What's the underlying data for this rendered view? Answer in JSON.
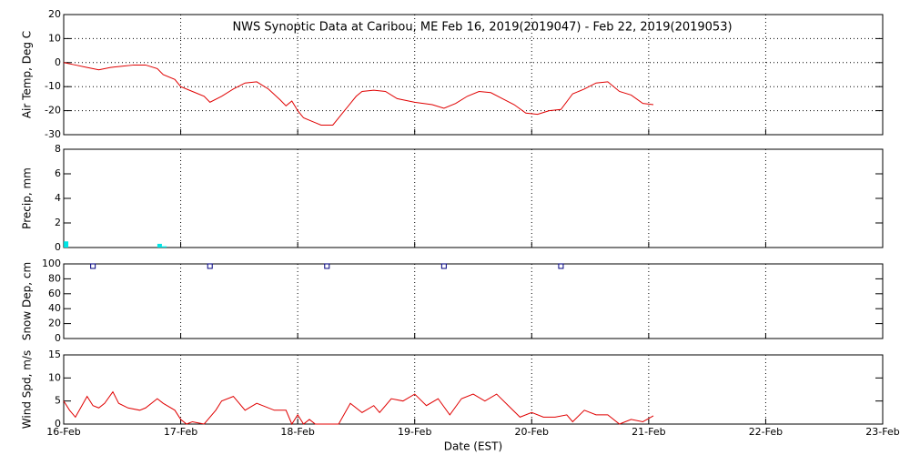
{
  "chart_data": [
    {
      "type": "line",
      "title": "NWS Synoptic Data at Caribou, ME   Feb 16, 2019(2019047) - Feb 22, 2019(2019053)",
      "ylabel": "Air Temp, Deg C",
      "color": "#e00000",
      "grid": "both",
      "x": [
        0,
        0.1,
        0.2,
        0.3,
        0.4,
        0.5,
        0.6,
        0.7,
        0.8,
        0.85,
        0.95,
        1.0,
        1.1,
        1.2,
        1.25,
        1.35,
        1.45,
        1.55,
        1.65,
        1.75,
        1.85,
        1.9,
        1.95,
        2.0,
        2.05,
        2.15,
        2.2,
        2.3,
        2.4,
        2.5,
        2.55,
        2.65,
        2.75,
        2.85,
        3.0,
        3.15,
        3.25,
        3.35,
        3.45,
        3.55,
        3.65,
        3.75,
        3.85,
        3.95,
        4.05,
        4.15,
        4.25,
        4.35,
        4.45,
        4.55,
        4.65,
        4.75,
        4.85,
        4.95,
        5.04
      ],
      "values": [
        0,
        -1,
        -2,
        -3,
        -2,
        -1.5,
        -1,
        -1,
        -2.5,
        -5,
        -7,
        -10,
        -12,
        -14,
        -16.5,
        -14,
        -11,
        -8.5,
        -8,
        -11,
        -15.5,
        -18,
        -16,
        -20,
        -23,
        -25,
        -26,
        -26,
        -20,
        -14,
        -12,
        -11.5,
        -12,
        -15,
        -16.5,
        -17.5,
        -19,
        -17,
        -14,
        -12,
        -12.5,
        -15,
        -17.5,
        -21,
        -21.5,
        -20,
        -19.5,
        -13,
        -11,
        -8.5,
        -8,
        -12,
        -13.5,
        -17,
        -17.5
      ],
      "xlim": [
        0,
        7
      ],
      "ylim": [
        -30,
        20
      ],
      "yticks": [
        -30,
        -20,
        -10,
        0,
        10,
        20
      ]
    },
    {
      "type": "bar",
      "ylabel": "Precip, mm",
      "color": "#00e5e5",
      "grid": "x",
      "x": [
        0.02,
        0.82,
        0.86
      ],
      "values": [
        0.5,
        0.3,
        0.1
      ],
      "xlim": [
        0,
        7
      ],
      "ylim": [
        0,
        8
      ],
      "yticks": [
        0,
        2,
        4,
        6,
        8
      ]
    },
    {
      "type": "scatter",
      "ylabel": "Snow Dep, cm",
      "color": "#000080",
      "grid": "x",
      "x": [
        0.25,
        1.25,
        2.25,
        3.25,
        4.25
      ],
      "values": [
        97,
        97,
        97,
        97,
        97
      ],
      "xlim": [
        0,
        7
      ],
      "ylim": [
        0,
        100
      ],
      "yticks": [
        0,
        20,
        40,
        60,
        80,
        100
      ]
    },
    {
      "type": "line",
      "ylabel": "Wind Spd, m/s",
      "xlabel": "Date (EST)",
      "color": "#e00000",
      "grid": "x",
      "x": [
        0,
        0.05,
        0.1,
        0.2,
        0.25,
        0.3,
        0.35,
        0.42,
        0.47,
        0.55,
        0.65,
        0.7,
        0.8,
        0.85,
        0.95,
        1.0,
        1.05,
        1.1,
        1.2,
        1.3,
        1.35,
        1.45,
        1.55,
        1.65,
        1.8,
        1.9,
        1.95,
        2.0,
        2.05,
        2.1,
        2.15,
        2.35,
        2.45,
        2.55,
        2.65,
        2.7,
        2.8,
        2.9,
        3.0,
        3.1,
        3.2,
        3.3,
        3.4,
        3.5,
        3.6,
        3.7,
        3.8,
        3.9,
        4.0,
        4.1,
        4.2,
        4.3,
        4.35,
        4.45,
        4.55,
        4.65,
        4.75,
        4.85,
        4.95,
        5.04
      ],
      "values": [
        5,
        3,
        1.5,
        6,
        4,
        3.5,
        4.5,
        7,
        4.5,
        3.5,
        3,
        3.5,
        5.5,
        4.5,
        3,
        1,
        0,
        0.5,
        0,
        3,
        5,
        6,
        3,
        4.5,
        3,
        3,
        0,
        2,
        0,
        1,
        0,
        0,
        4.5,
        2.5,
        4,
        2.5,
        5.5,
        5,
        6.5,
        4,
        5.5,
        2,
        5.5,
        6.5,
        5,
        6.5,
        4,
        1.5,
        2.5,
        1.5,
        1.5,
        2,
        0.5,
        3,
        2,
        2,
        0,
        1,
        0.5,
        1.8
      ],
      "xlim": [
        0,
        7
      ],
      "ylim": [
        0,
        15
      ],
      "yticks": [
        0,
        5,
        10,
        15
      ],
      "xticks": [
        {
          "value": 0,
          "label": "16-Feb"
        },
        {
          "value": 1,
          "label": "17-Feb"
        },
        {
          "value": 2,
          "label": "18-Feb"
        },
        {
          "value": 3,
          "label": "19-Feb"
        },
        {
          "value": 4,
          "label": "20-Feb"
        },
        {
          "value": 5,
          "label": "21-Feb"
        },
        {
          "value": 6,
          "label": "22-Feb"
        },
        {
          "value": 7,
          "label": "23-Feb"
        }
      ]
    }
  ]
}
